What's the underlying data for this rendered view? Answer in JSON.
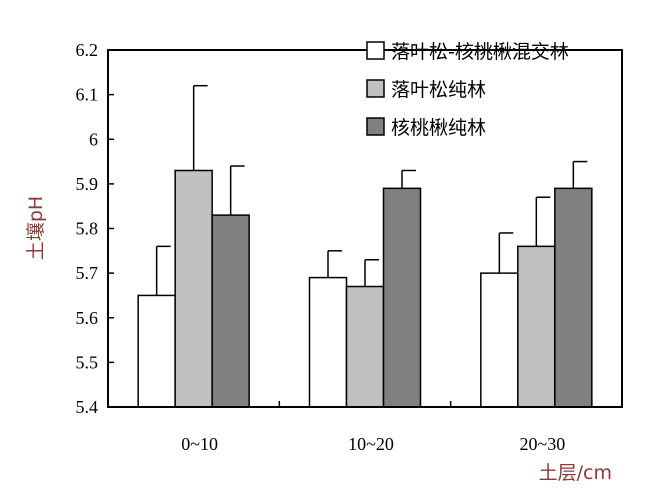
{
  "chart_data": {
    "type": "bar",
    "title": "",
    "xlabel": "土层/cm",
    "ylabel": "土壤pH",
    "categories": [
      "0~10",
      "10~20",
      "20~30"
    ],
    "ylim": [
      5.4,
      6.2
    ],
    "yticks": [
      "5.4",
      "5.5",
      "5.6",
      "5.7",
      "5.8",
      "5.9",
      "6",
      "6.1",
      "6.2"
    ],
    "grid": false,
    "legend_position": "top-right",
    "series": [
      {
        "name": "落叶松-核桃楸混交林",
        "color": "#ffffff",
        "values": [
          5.65,
          5.69,
          5.7
        ],
        "errors": [
          0.11,
          0.06,
          0.09
        ]
      },
      {
        "name": "落叶松纯林",
        "color": "#c0c0c0",
        "values": [
          5.93,
          5.67,
          5.76
        ],
        "errors": [
          0.19,
          0.06,
          0.11
        ]
      },
      {
        "name": "核桃楸纯林",
        "color": "#808080",
        "values": [
          5.83,
          5.89,
          5.89
        ],
        "errors": [
          0.11,
          0.04,
          0.06
        ]
      }
    ]
  }
}
